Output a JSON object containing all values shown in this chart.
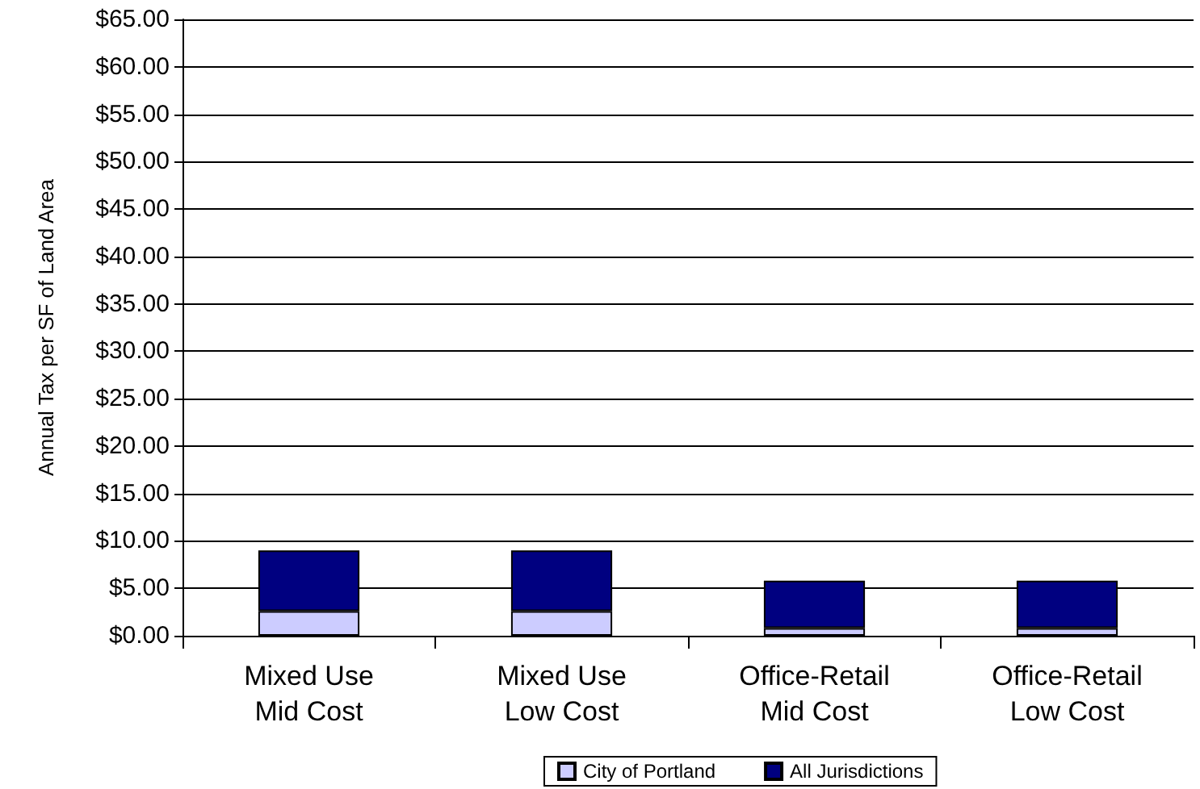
{
  "chart_data": {
    "type": "bar",
    "ylabel": "Annual Tax per SF of Land Area",
    "categories": [
      "Mixed Use\nMid Cost",
      "Mixed Use\nLow Cost",
      "Office-Retail\nMid Cost",
      "Office-Retail\nLow Cost"
    ],
    "stacked": true,
    "series": [
      {
        "name": "City of Portland",
        "color": "#ccccff",
        "values": [
          2.6,
          2.6,
          0.8,
          0.8
        ]
      },
      {
        "name": "All Jurisdictions",
        "color": "#000080",
        "values": [
          6.4,
          6.4,
          5.0,
          5.0
        ]
      }
    ],
    "ylim": [
      0,
      65
    ],
    "yticks": [
      {
        "value": 0,
        "label": "$0.00"
      },
      {
        "value": 5,
        "label": "$5.00"
      },
      {
        "value": 10,
        "label": "$10.00"
      },
      {
        "value": 15,
        "label": "$15.00"
      },
      {
        "value": 20,
        "label": "$20.00"
      },
      {
        "value": 25,
        "label": "$25.00"
      },
      {
        "value": 30,
        "label": "$30.00"
      },
      {
        "value": 35,
        "label": "$35.00"
      },
      {
        "value": 40,
        "label": "$40.00"
      },
      {
        "value": 45,
        "label": "$45.00"
      },
      {
        "value": 50,
        "label": "$50.00"
      },
      {
        "value": 55,
        "label": "$55.00"
      },
      {
        "value": 60,
        "label": "$60.00"
      },
      {
        "value": 65,
        "label": "$65.00"
      }
    ],
    "grid": "y",
    "legend": "bottom"
  }
}
